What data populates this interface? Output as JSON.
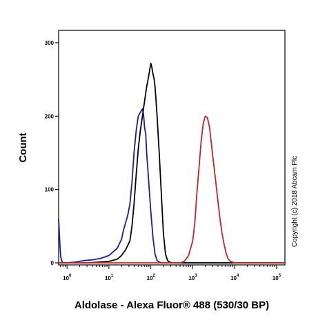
{
  "chart_data": {
    "type": "line",
    "title": "",
    "xlabel": "Aldolase - Alexa Fluor® 488 (530/30 BP)",
    "ylabel": "Count",
    "x_scale": "log",
    "xlim_decades": [
      -0.2,
      5.2
    ],
    "ylim": [
      0,
      330
    ],
    "y_ticks": [
      0,
      100,
      200,
      300
    ],
    "y_tick_labels": [
      "0",
      "100",
      "200",
      "300"
    ],
    "x_ticks": [
      0,
      1,
      2,
      3,
      4,
      5
    ],
    "x_tick_labels": [
      {
        "base": "10",
        "exp": "0"
      },
      {
        "base": "10",
        "exp": "1"
      },
      {
        "base": "10",
        "exp": "2"
      },
      {
        "base": "10",
        "exp": "3"
      },
      {
        "base": "10",
        "exp": "4"
      },
      {
        "base": "10",
        "exp": "5"
      }
    ],
    "grid": false,
    "legend": "none",
    "annotation": "Copyright (c) 2018 Abcam Plc",
    "series": [
      {
        "color": "#1a1aa8",
        "x_decades": [
          -0.2,
          -0.17,
          -0.15,
          -0.12,
          -0.1,
          -0.05,
          0,
          0.2,
          0.4,
          0.6,
          0.8,
          1,
          1.1,
          1.2,
          1.3,
          1.35,
          1.4,
          1.45,
          1.5,
          1.55,
          1.6,
          1.65,
          1.7,
          1.75,
          1.8,
          1.83,
          1.85,
          1.88,
          1.9,
          1.95,
          2,
          2.05,
          2.1,
          2.15,
          2.2,
          2.25,
          2.3,
          2.4,
          5.2
        ],
        "y": [
          60,
          25,
          8,
          2,
          0,
          0,
          0,
          1,
          3,
          4,
          6,
          10,
          15,
          20,
          32,
          45,
          55,
          65,
          80,
          110,
          150,
          180,
          200,
          205,
          210,
          200,
          185,
          175,
          150,
          110,
          70,
          35,
          12,
          3,
          1,
          0,
          0,
          0,
          0
        ]
      },
      {
        "color": "#000000",
        "x_decades": [
          -0.2,
          0.5,
          1,
          1.2,
          1.3,
          1.4,
          1.5,
          1.55,
          1.6,
          1.65,
          1.7,
          1.75,
          1.8,
          1.85,
          1.9,
          1.95,
          2,
          2.02,
          2.05,
          2.08,
          2.1,
          2.12,
          2.15,
          2.2,
          2.25,
          2.3,
          2.35,
          2.4,
          2.45,
          2.5,
          5.2
        ],
        "y": [
          0,
          0,
          2,
          5,
          10,
          18,
          30,
          50,
          80,
          120,
          155,
          180,
          200,
          220,
          240,
          255,
          272,
          268,
          258,
          250,
          240,
          225,
          200,
          150,
          95,
          40,
          12,
          3,
          1,
          0,
          0
        ]
      },
      {
        "color": "#c82424",
        "x_decades": [
          -0.2,
          2.7,
          2.8,
          2.9,
          3,
          3.05,
          3.1,
          3.15,
          3.2,
          3.25,
          3.3,
          3.35,
          3.4,
          3.45,
          3.5,
          3.55,
          3.6,
          3.65,
          3.7,
          3.75,
          3.8,
          3.85,
          3.9,
          3.95,
          4,
          5.2
        ],
        "y": [
          0,
          0,
          2,
          10,
          30,
          55,
          95,
          130,
          165,
          190,
          200,
          198,
          185,
          160,
          135,
          110,
          85,
          60,
          40,
          25,
          12,
          5,
          2,
          1,
          0,
          0
        ]
      }
    ]
  }
}
